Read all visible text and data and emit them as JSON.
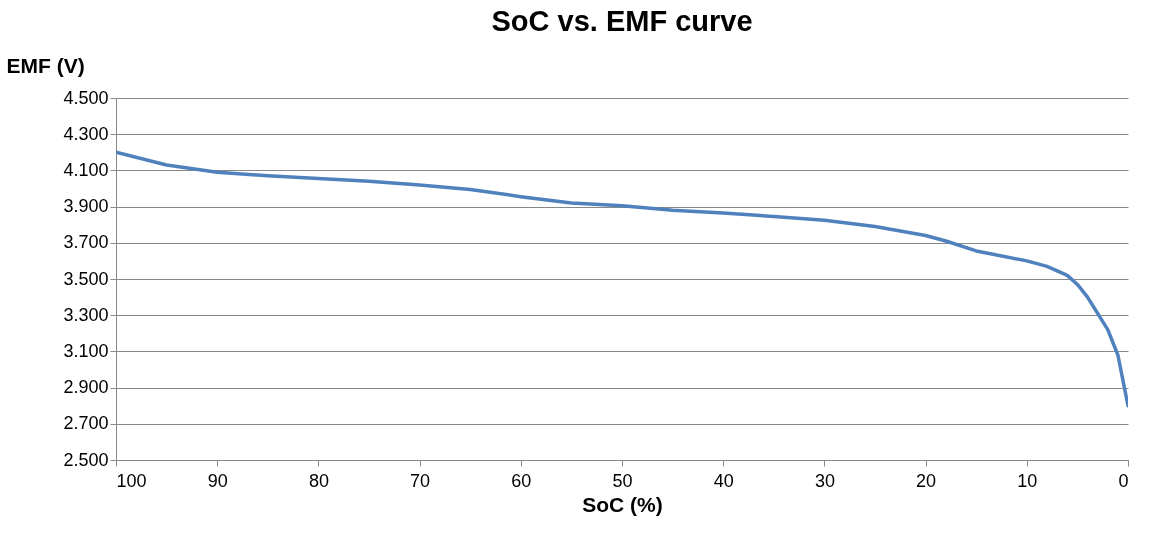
{
  "chart_data": {
    "type": "line",
    "title": "SoC vs. EMF curve",
    "xlabel": "SoC (%)",
    "ylabel": "EMF (V)",
    "x": [
      100,
      95,
      90,
      85,
      80,
      75,
      70,
      65,
      60,
      55,
      50,
      45,
      40,
      35,
      30,
      25,
      20,
      18,
      15,
      10,
      8,
      6,
      5,
      4,
      3,
      2,
      1,
      0
    ],
    "series": [
      {
        "color": "#4f81bd",
        "values": [
          4.2,
          4.13,
          4.09,
          4.07,
          4.055,
          4.04,
          4.02,
          3.995,
          3.955,
          3.92,
          3.905,
          3.88,
          3.865,
          3.845,
          3.825,
          3.79,
          3.74,
          3.71,
          3.655,
          3.6,
          3.57,
          3.52,
          3.47,
          3.4,
          3.31,
          3.22,
          3.08,
          2.8
        ]
      }
    ],
    "xlim": [
      100,
      0
    ],
    "xticks": [
      100,
      90,
      80,
      70,
      60,
      50,
      40,
      30,
      20,
      10,
      0
    ],
    "ylim": [
      2.5,
      4.5
    ],
    "yticks": [
      {
        "value": 2.5,
        "label": "2.500"
      },
      {
        "value": 2.7,
        "label": "2.700"
      },
      {
        "value": 2.9,
        "label": "2.900"
      },
      {
        "value": 3.1,
        "label": "3.100"
      },
      {
        "value": 3.3,
        "label": "3.300"
      },
      {
        "value": 3.5,
        "label": "3.500"
      },
      {
        "value": 3.7,
        "label": "3.700"
      },
      {
        "value": 3.9,
        "label": "3.900"
      },
      {
        "value": 4.1,
        "label": "4.100"
      },
      {
        "value": 4.3,
        "label": "4.300"
      },
      {
        "value": 4.5,
        "label": "4.500"
      }
    ],
    "grid": "y",
    "marker": "none",
    "line_style": "solid"
  }
}
